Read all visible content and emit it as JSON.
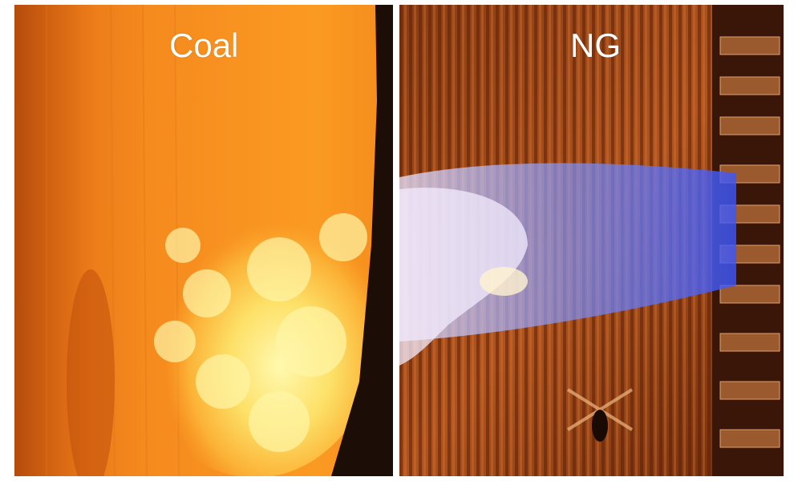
{
  "panels": [
    {
      "label": "Coal"
    },
    {
      "label": "NG"
    }
  ]
}
